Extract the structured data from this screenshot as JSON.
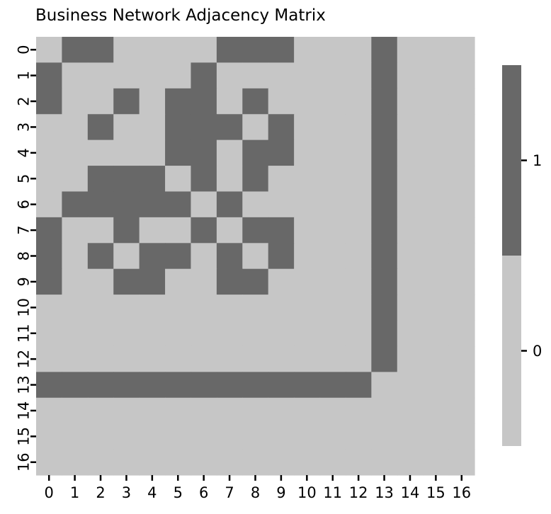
{
  "chart_data": {
    "type": "heatmap",
    "title": "Business Network Adjacency Matrix",
    "xlabel": "",
    "ylabel": "",
    "x_tick_labels": [
      "0",
      "1",
      "2",
      "3",
      "4",
      "5",
      "6",
      "7",
      "8",
      "9",
      "10",
      "11",
      "12",
      "13",
      "14",
      "15",
      "16"
    ],
    "y_tick_labels": [
      "0",
      "1",
      "2",
      "3",
      "4",
      "5",
      "6",
      "7",
      "8",
      "9",
      "10",
      "11",
      "12",
      "13",
      "14",
      "15",
      "16"
    ],
    "matrix": [
      [
        0,
        1,
        1,
        0,
        0,
        0,
        0,
        1,
        1,
        1,
        0,
        0,
        0,
        1,
        0,
        0,
        0
      ],
      [
        1,
        0,
        0,
        0,
        0,
        0,
        1,
        0,
        0,
        0,
        0,
        0,
        0,
        1,
        0,
        0,
        0
      ],
      [
        1,
        0,
        0,
        1,
        0,
        1,
        1,
        0,
        1,
        0,
        0,
        0,
        0,
        1,
        0,
        0,
        0
      ],
      [
        0,
        0,
        1,
        0,
        0,
        1,
        1,
        1,
        0,
        1,
        0,
        0,
        0,
        1,
        0,
        0,
        0
      ],
      [
        0,
        0,
        0,
        0,
        0,
        1,
        1,
        0,
        1,
        1,
        0,
        0,
        0,
        1,
        0,
        0,
        0
      ],
      [
        0,
        0,
        1,
        1,
        1,
        0,
        1,
        0,
        1,
        0,
        0,
        0,
        0,
        1,
        0,
        0,
        0
      ],
      [
        0,
        1,
        1,
        1,
        1,
        1,
        0,
        1,
        0,
        0,
        0,
        0,
        0,
        1,
        0,
        0,
        0
      ],
      [
        1,
        0,
        0,
        1,
        0,
        0,
        1,
        0,
        1,
        1,
        0,
        0,
        0,
        1,
        0,
        0,
        0
      ],
      [
        1,
        0,
        1,
        0,
        1,
        1,
        0,
        1,
        0,
        1,
        0,
        0,
        0,
        1,
        0,
        0,
        0
      ],
      [
        1,
        0,
        0,
        1,
        1,
        0,
        0,
        1,
        1,
        0,
        0,
        0,
        0,
        1,
        0,
        0,
        0
      ],
      [
        0,
        0,
        0,
        0,
        0,
        0,
        0,
        0,
        0,
        0,
        0,
        0,
        0,
        1,
        0,
        0,
        0
      ],
      [
        0,
        0,
        0,
        0,
        0,
        0,
        0,
        0,
        0,
        0,
        0,
        0,
        0,
        1,
        0,
        0,
        0
      ],
      [
        0,
        0,
        0,
        0,
        0,
        0,
        0,
        0,
        0,
        0,
        0,
        0,
        0,
        1,
        0,
        0,
        0
      ],
      [
        1,
        1,
        1,
        1,
        1,
        1,
        1,
        1,
        1,
        1,
        1,
        1,
        1,
        0,
        0,
        0,
        0
      ],
      [
        0,
        0,
        0,
        0,
        0,
        0,
        0,
        0,
        0,
        0,
        0,
        0,
        0,
        0,
        0,
        0,
        0
      ],
      [
        0,
        0,
        0,
        0,
        0,
        0,
        0,
        0,
        0,
        0,
        0,
        0,
        0,
        0,
        0,
        0,
        0
      ],
      [
        0,
        0,
        0,
        0,
        0,
        0,
        0,
        0,
        0,
        0,
        0,
        0,
        0,
        0,
        0,
        0,
        0
      ]
    ],
    "colorbar": {
      "ticks": [
        {
          "value": 1,
          "label": "1"
        },
        {
          "value": 0,
          "label": "0"
        }
      ],
      "min": -0.5,
      "max": 1.5
    },
    "colors": {
      "value_0": "#c6c6c6",
      "value_1": "#686868"
    },
    "grid": false
  }
}
